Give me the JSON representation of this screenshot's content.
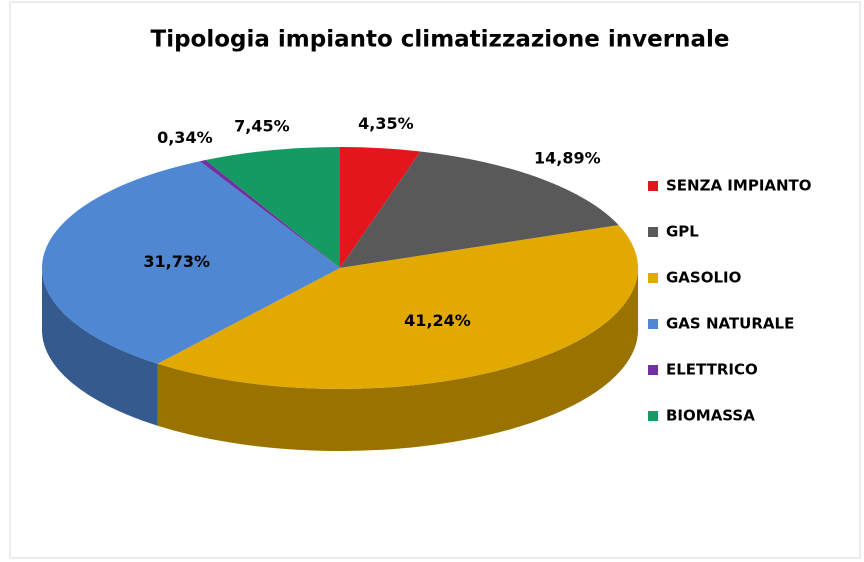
{
  "chart_data": {
    "type": "pie",
    "title": "Tipologia impianto climatizzazione invernale",
    "categories": [
      "SENZA IMPIANTO",
      "GPL",
      "GASOLIO",
      "GAS NATURALE",
      "ELETTRICO",
      "BIOMASSA"
    ],
    "values": [
      4.35,
      14.89,
      41.24,
      31.73,
      0.34,
      7.45
    ],
    "value_labels": [
      "4,35%",
      "14,89%",
      "41,24%",
      "31,73%",
      "0,34%",
      "7,45%"
    ],
    "colors": [
      "#e3161d",
      "#595959",
      "#e2a900",
      "#4f87d2",
      "#7030a0",
      "#169a63"
    ],
    "legend": "right"
  }
}
